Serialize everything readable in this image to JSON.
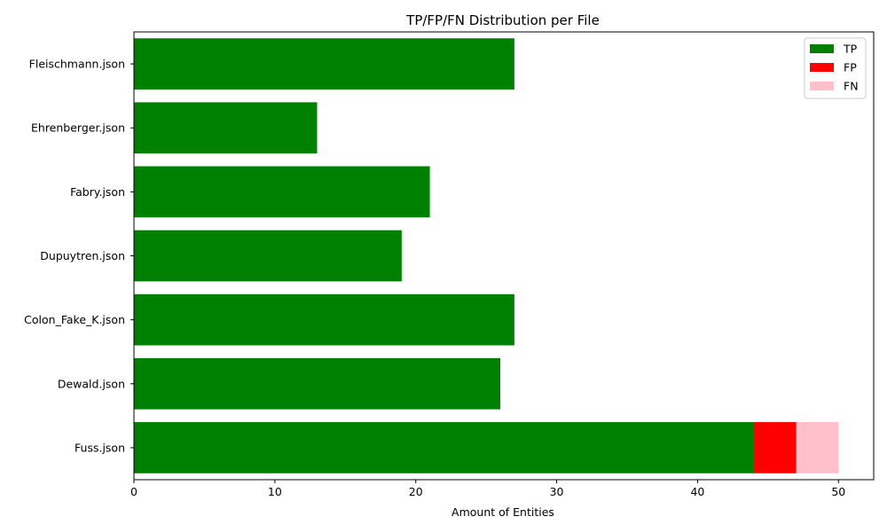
{
  "chart_data": {
    "type": "bar",
    "orientation": "horizontal",
    "stacked": true,
    "title": "TP/FP/FN Distribution per File",
    "xlabel": "Amount of Entities",
    "ylabel": "",
    "categories": [
      "Fleischmann.json",
      "Ehrenberger.json",
      "Fabry.json",
      "Dupuytren.json",
      "Colon_Fake_K.json",
      "Dewald.json",
      "Fuss.json"
    ],
    "series": [
      {
        "name": "TP",
        "color": "#008000",
        "values": [
          27,
          13,
          21,
          19,
          27,
          26,
          44
        ]
      },
      {
        "name": "FP",
        "color": "#ff0000",
        "values": [
          0,
          0,
          0,
          0,
          0,
          0,
          3
        ]
      },
      {
        "name": "FN",
        "color": "#ffc0cb",
        "values": [
          0,
          0,
          0,
          0,
          0,
          0,
          3
        ]
      }
    ],
    "xlim": [
      0,
      52.5
    ],
    "xticks": [
      0,
      10,
      20,
      30,
      40,
      50
    ],
    "grid": false,
    "legend_position": "top-right"
  }
}
